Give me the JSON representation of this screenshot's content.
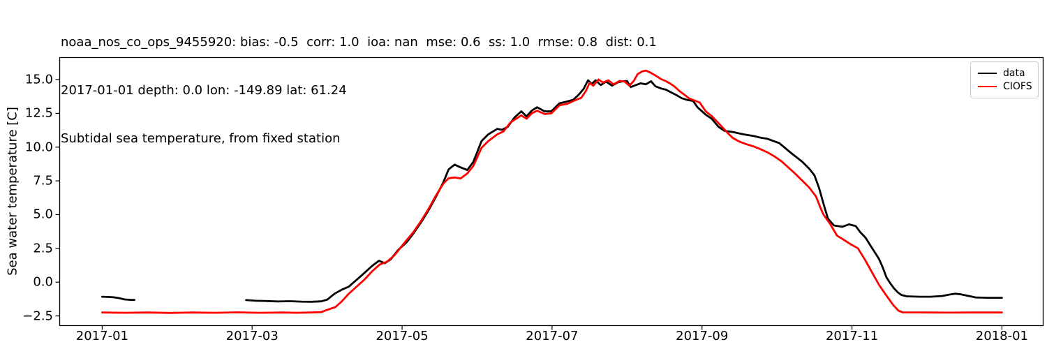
{
  "chart_data": {
    "type": "line",
    "title_lines": [
      "noaa_nos_co_ops_9455920: bias: -0.5  corr: 1.0  ioa: nan  mse: 0.6  ss: 1.0  rmse: 0.8  dist: 0.1",
      "2017-01-01 depth: 0.0 lon: -149.89 lat: 61.24",
      "Subtidal sea temperature, from fixed station"
    ],
    "xlabel": "",
    "ylabel": "Sea water temperature [C]",
    "x_unit": "months since 2017-01-01",
    "xlim": [
      -0.567,
      12.55
    ],
    "ylim": [
      -3.22,
      16.63
    ],
    "grid": false,
    "legend_position": "upper right",
    "x_ticks": [
      {
        "value": 0,
        "label": "2017-01"
      },
      {
        "value": 2,
        "label": "2017-03"
      },
      {
        "value": 4,
        "label": "2017-05"
      },
      {
        "value": 6,
        "label": "2017-07"
      },
      {
        "value": 8,
        "label": "2017-09"
      },
      {
        "value": 10,
        "label": "2017-11"
      },
      {
        "value": 12,
        "label": "2018-01"
      }
    ],
    "y_ticks": [
      {
        "value": 15.0,
        "label": "15.0"
      },
      {
        "value": 12.5,
        "label": "12.5"
      },
      {
        "value": 10.0,
        "label": "10.0"
      },
      {
        "value": 7.5,
        "label": "7.5"
      },
      {
        "value": 5.0,
        "label": "5.0"
      },
      {
        "value": 2.5,
        "label": "2.5"
      },
      {
        "value": 0.0,
        "label": "0.0"
      },
      {
        "value": -2.5,
        "label": "−2.5"
      }
    ],
    "series": [
      {
        "name": "data",
        "color": "#000000",
        "segments": [
          [
            [
              0,
              -1.08
            ],
            [
              0.1,
              -1.1
            ],
            [
              0.15,
              -1.12
            ],
            [
              0.22,
              -1.18
            ],
            [
              0.3,
              -1.28
            ],
            [
              0.38,
              -1.31
            ],
            [
              0.43,
              -1.32
            ]
          ],
          [
            [
              1.92,
              -1.33
            ],
            [
              2.05,
              -1.38
            ],
            [
              2.2,
              -1.4
            ],
            [
              2.35,
              -1.43
            ],
            [
              2.5,
              -1.41
            ],
            [
              2.65,
              -1.44
            ],
            [
              2.8,
              -1.45
            ],
            [
              2.92,
              -1.42
            ],
            [
              3.0,
              -1.3
            ],
            [
              3.1,
              -0.85
            ],
            [
              3.2,
              -0.55
            ],
            [
              3.29,
              -0.33
            ],
            [
              3.4,
              0.2
            ],
            [
              3.5,
              0.7
            ],
            [
              3.6,
              1.2
            ],
            [
              3.69,
              1.58
            ],
            [
              3.77,
              1.4
            ],
            [
              3.85,
              1.7
            ],
            [
              3.95,
              2.4
            ],
            [
              4.06,
              2.95
            ],
            [
              4.15,
              3.6
            ],
            [
              4.25,
              4.4
            ],
            [
              4.35,
              5.3
            ],
            [
              4.45,
              6.3
            ],
            [
              4.55,
              7.4
            ],
            [
              4.62,
              8.35
            ],
            [
              4.7,
              8.7
            ],
            [
              4.78,
              8.5
            ],
            [
              4.87,
              8.3
            ],
            [
              4.95,
              8.9
            ],
            [
              5.06,
              10.45
            ],
            [
              5.15,
              10.95
            ],
            [
              5.27,
              11.35
            ],
            [
              5.33,
              11.28
            ],
            [
              5.41,
              11.5
            ],
            [
              5.5,
              12.2
            ],
            [
              5.59,
              12.65
            ],
            [
              5.66,
              12.28
            ],
            [
              5.73,
              12.7
            ],
            [
              5.8,
              12.95
            ],
            [
              5.9,
              12.65
            ],
            [
              5.99,
              12.65
            ],
            [
              6.1,
              13.25
            ],
            [
              6.18,
              13.35
            ],
            [
              6.28,
              13.5
            ],
            [
              6.35,
              13.85
            ],
            [
              6.42,
              14.3
            ],
            [
              6.48,
              14.95
            ],
            [
              6.53,
              14.68
            ],
            [
              6.58,
              14.95
            ],
            [
              6.65,
              14.6
            ],
            [
              6.72,
              14.85
            ],
            [
              6.8,
              14.55
            ],
            [
              6.88,
              14.8
            ],
            [
              6.95,
              14.88
            ],
            [
              7.0,
              14.9
            ],
            [
              7.05,
              14.45
            ],
            [
              7.12,
              14.6
            ],
            [
              7.18,
              14.72
            ],
            [
              7.25,
              14.65
            ],
            [
              7.32,
              14.88
            ],
            [
              7.38,
              14.5
            ],
            [
              7.45,
              14.35
            ],
            [
              7.52,
              14.25
            ],
            [
              7.57,
              14.1
            ],
            [
              7.65,
              13.88
            ],
            [
              7.73,
              13.62
            ],
            [
              7.8,
              13.5
            ],
            [
              7.88,
              13.42
            ],
            [
              7.94,
              12.95
            ],
            [
              8.05,
              12.4
            ],
            [
              8.13,
              12.1
            ],
            [
              8.22,
              11.5
            ],
            [
              8.3,
              11.2
            ],
            [
              8.41,
              11.12
            ],
            [
              8.55,
              10.95
            ],
            [
              8.69,
              10.82
            ],
            [
              8.78,
              10.7
            ],
            [
              8.87,
              10.62
            ],
            [
              9.03,
              10.3
            ],
            [
              9.18,
              9.6
            ],
            [
              9.34,
              8.9
            ],
            [
              9.43,
              8.4
            ],
            [
              9.5,
              7.9
            ],
            [
              9.56,
              7.0
            ],
            [
              9.62,
              5.8
            ],
            [
              9.68,
              4.7
            ],
            [
              9.76,
              4.2
            ],
            [
              9.87,
              4.1
            ],
            [
              9.96,
              4.28
            ],
            [
              10.05,
              4.15
            ],
            [
              10.11,
              3.7
            ],
            [
              10.18,
              3.3
            ],
            [
              10.27,
              2.5
            ],
            [
              10.36,
              1.72
            ],
            [
              10.41,
              1.1
            ],
            [
              10.46,
              0.35
            ],
            [
              10.51,
              -0.08
            ],
            [
              10.56,
              -0.45
            ],
            [
              10.61,
              -0.75
            ],
            [
              10.66,
              -0.95
            ],
            [
              10.73,
              -1.05
            ],
            [
              10.9,
              -1.08
            ],
            [
              11.05,
              -1.08
            ],
            [
              11.2,
              -1.03
            ],
            [
              11.3,
              -0.92
            ],
            [
              11.38,
              -0.86
            ],
            [
              11.45,
              -0.9
            ],
            [
              11.55,
              -1.02
            ],
            [
              11.65,
              -1.13
            ],
            [
              11.8,
              -1.16
            ],
            [
              12.0,
              -1.16
            ]
          ]
        ]
      },
      {
        "name": "CIOFS",
        "color": "#ff0000",
        "segments": [
          [
            [
              0,
              -2.25
            ],
            [
              0.3,
              -2.27
            ],
            [
              0.6,
              -2.25
            ],
            [
              0.9,
              -2.28
            ],
            [
              1.2,
              -2.25
            ],
            [
              1.5,
              -2.27
            ],
            [
              1.8,
              -2.24
            ],
            [
              2.1,
              -2.27
            ],
            [
              2.4,
              -2.25
            ],
            [
              2.6,
              -2.27
            ],
            [
              2.78,
              -2.25
            ],
            [
              2.92,
              -2.22
            ],
            [
              3.0,
              -2.05
            ],
            [
              3.11,
              -1.85
            ],
            [
              3.2,
              -1.4
            ],
            [
              3.29,
              -0.85
            ],
            [
              3.4,
              -0.3
            ],
            [
              3.5,
              0.2
            ],
            [
              3.6,
              0.8
            ],
            [
              3.7,
              1.3
            ],
            [
              3.8,
              1.52
            ],
            [
              3.9,
              2.0
            ],
            [
              4.0,
              2.7
            ],
            [
              4.06,
              3.1
            ],
            [
              4.15,
              3.7
            ],
            [
              4.25,
              4.5
            ],
            [
              4.35,
              5.4
            ],
            [
              4.45,
              6.4
            ],
            [
              4.55,
              7.3
            ],
            [
              4.62,
              7.7
            ],
            [
              4.7,
              7.75
            ],
            [
              4.78,
              7.68
            ],
            [
              4.87,
              8.05
            ],
            [
              4.95,
              8.6
            ],
            [
              5.06,
              9.95
            ],
            [
              5.15,
              10.45
            ],
            [
              5.27,
              10.95
            ],
            [
              5.35,
              11.15
            ],
            [
              5.45,
              11.85
            ],
            [
              5.59,
              12.35
            ],
            [
              5.66,
              12.1
            ],
            [
              5.73,
              12.5
            ],
            [
              5.8,
              12.7
            ],
            [
              5.9,
              12.45
            ],
            [
              5.99,
              12.5
            ],
            [
              6.1,
              13.1
            ],
            [
              6.2,
              13.2
            ],
            [
              6.3,
              13.45
            ],
            [
              6.39,
              13.65
            ],
            [
              6.45,
              14.15
            ],
            [
              6.5,
              14.75
            ],
            [
              6.55,
              14.55
            ],
            [
              6.62,
              15.0
            ],
            [
              6.68,
              14.78
            ],
            [
              6.75,
              14.95
            ],
            [
              6.82,
              14.65
            ],
            [
              6.9,
              14.9
            ],
            [
              6.97,
              14.85
            ],
            [
              7.03,
              14.55
            ],
            [
              7.09,
              14.9
            ],
            [
              7.14,
              15.4
            ],
            [
              7.2,
              15.6
            ],
            [
              7.25,
              15.67
            ],
            [
              7.3,
              15.55
            ],
            [
              7.38,
              15.3
            ],
            [
              7.45,
              15.05
            ],
            [
              7.52,
              14.88
            ],
            [
              7.57,
              14.72
            ],
            [
              7.63,
              14.5
            ],
            [
              7.7,
              14.15
            ],
            [
              7.76,
              13.9
            ],
            [
              7.83,
              13.6
            ],
            [
              7.9,
              13.45
            ],
            [
              7.97,
              13.3
            ],
            [
              8.05,
              12.65
            ],
            [
              8.13,
              12.3
            ],
            [
              8.25,
              11.6
            ],
            [
              8.35,
              11.0
            ],
            [
              8.41,
              10.68
            ],
            [
              8.5,
              10.4
            ],
            [
              8.6,
              10.2
            ],
            [
              8.69,
              10.05
            ],
            [
              8.78,
              9.85
            ],
            [
              8.87,
              9.62
            ],
            [
              8.97,
              9.3
            ],
            [
              9.06,
              8.95
            ],
            [
              9.15,
              8.5
            ],
            [
              9.24,
              8.05
            ],
            [
              9.34,
              7.5
            ],
            [
              9.43,
              7.0
            ],
            [
              9.52,
              6.35
            ],
            [
              9.58,
              5.5
            ],
            [
              9.62,
              5.0
            ],
            [
              9.71,
              4.3
            ],
            [
              9.8,
              3.45
            ],
            [
              9.9,
              3.1
            ],
            [
              9.99,
              2.78
            ],
            [
              10.08,
              2.5
            ],
            [
              10.18,
              1.6
            ],
            [
              10.27,
              0.7
            ],
            [
              10.36,
              -0.2
            ],
            [
              10.46,
              -1.0
            ],
            [
              10.55,
              -1.7
            ],
            [
              10.62,
              -2.12
            ],
            [
              10.68,
              -2.24
            ],
            [
              11.0,
              -2.25
            ],
            [
              11.3,
              -2.26
            ],
            [
              11.6,
              -2.25
            ],
            [
              12.0,
              -2.25
            ]
          ]
        ]
      }
    ]
  }
}
